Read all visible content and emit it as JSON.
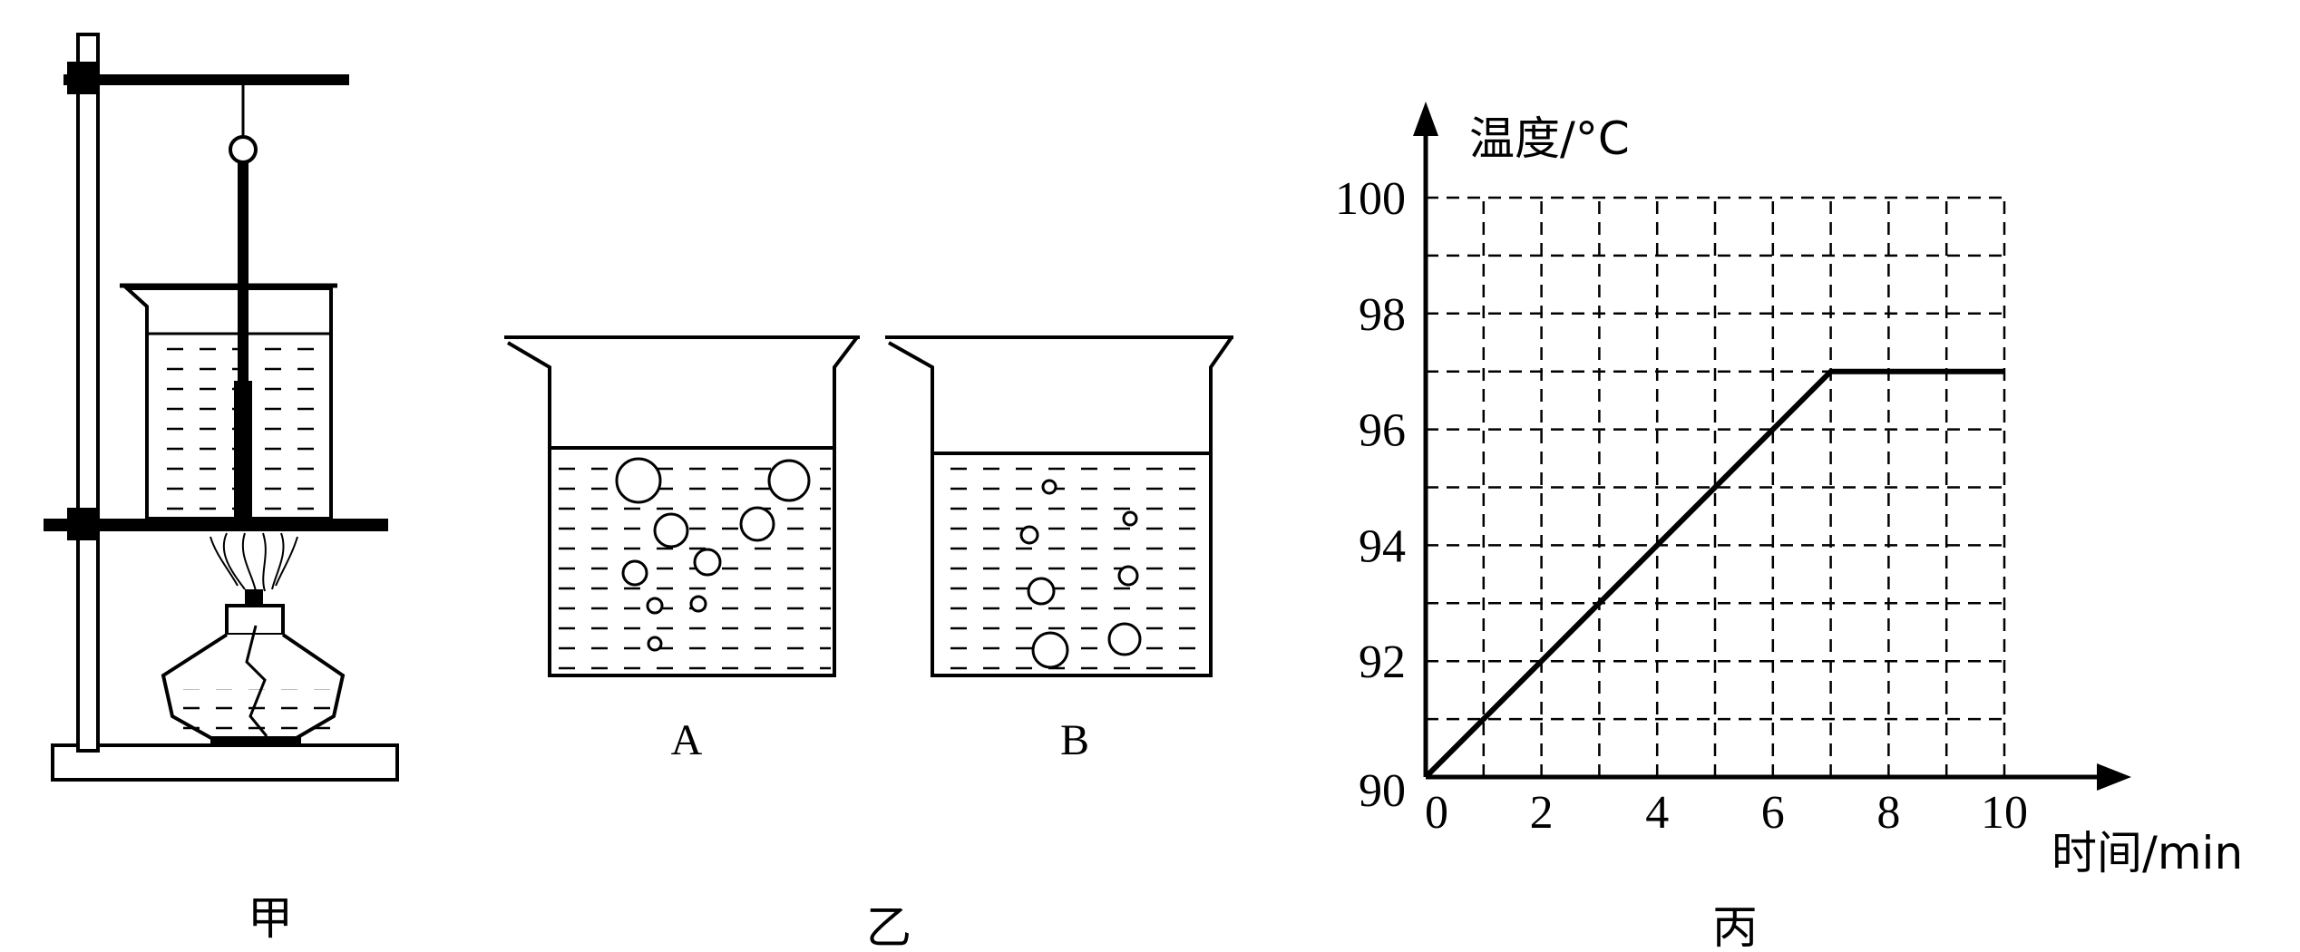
{
  "panels": {
    "jia": {
      "label": "甲"
    },
    "yi": {
      "label": "乙",
      "beaker_a_label": "A",
      "beaker_b_label": "B"
    },
    "bing": {
      "label": "丙"
    }
  },
  "chart_data": {
    "type": "line",
    "ylabel": "温度/°C",
    "xlabel": "时间/min",
    "x_ticks": [
      "0",
      "2",
      "4",
      "6",
      "8",
      "10"
    ],
    "y_ticks": [
      "90",
      "92",
      "94",
      "96",
      "98",
      "100"
    ],
    "xlim": [
      0,
      10
    ],
    "ylim": [
      90,
      100
    ],
    "grid": "dashed, every 1 unit",
    "series": [
      {
        "x": [
          0,
          7,
          10
        ],
        "y": [
          90,
          97,
          97
        ]
      }
    ]
  },
  "colors": {
    "ink": "#000000",
    "background": "#ffffff"
  }
}
